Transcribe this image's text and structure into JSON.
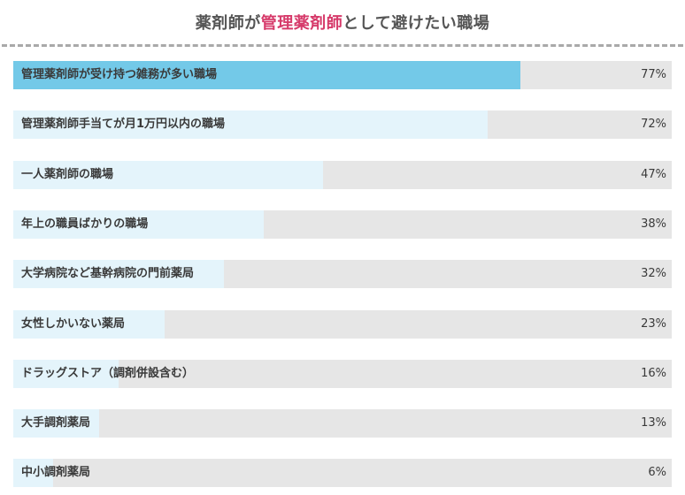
{
  "title": {
    "pre": "薬剤師が",
    "highlight": "管理薬剤師",
    "post": "として避けたい職場",
    "highlight_color": "#d63a6a"
  },
  "colors": {
    "top_bar": "#73c9e8",
    "bar": "#e4f4fb",
    "track": "#e6e6e6"
  },
  "chart_data": {
    "type": "bar",
    "orientation": "horizontal",
    "xlim": [
      0,
      100
    ],
    "categories": [
      "管理薬剤師が受け持つ雑務が多い職場",
      "管理薬剤師手当てが月1万円以内の職場",
      "一人薬剤師の職場",
      "年上の職員ばかりの職場",
      "大学病院など基幹病院の門前薬局",
      "女性しかいない薬局",
      "ドラッグストア（調剤併設含む）",
      "大手調剤薬局",
      "中小調剤薬局"
    ],
    "values": [
      77,
      72,
      47,
      38,
      32,
      23,
      16,
      13,
      6
    ],
    "value_labels": [
      "77%",
      "72%",
      "47%",
      "38%",
      "32%",
      "23%",
      "16%",
      "13%",
      "6%"
    ]
  }
}
